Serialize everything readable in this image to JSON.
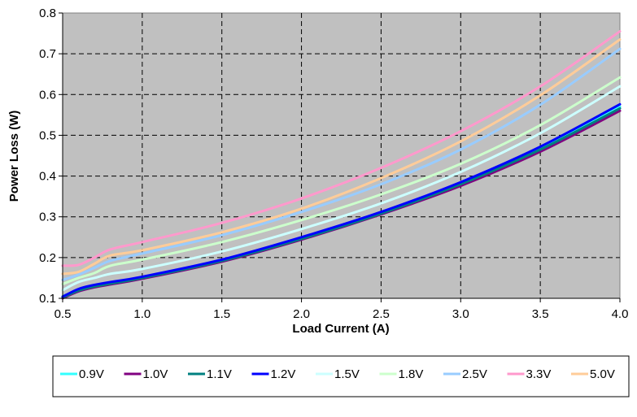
{
  "chart_data": {
    "type": "line",
    "title": "",
    "xlabel": "Load Current (A)",
    "ylabel": "Power Loss (W)",
    "xlim": [
      0.5,
      4.0
    ],
    "ylim": [
      0.1,
      0.8
    ],
    "x_ticks": [
      "0.5",
      "1.0",
      "1.5",
      "2.0",
      "2.5",
      "3.0",
      "3.5",
      "4.0"
    ],
    "y_ticks": [
      "0.1",
      "0.2",
      "0.3",
      "0.4",
      "0.5",
      "0.6",
      "0.7",
      "0.8"
    ],
    "grid": true,
    "plot_background": "#c0c0c0",
    "legend_position": "bottom",
    "x": [
      0.5,
      0.6,
      0.7,
      0.8,
      1.0,
      1.5,
      2.0,
      2.5,
      3.0,
      3.5,
      4.0
    ],
    "series": [
      {
        "name": "0.9V",
        "color": "#33ffff",
        "values": [
          0.105,
          0.12,
          0.13,
          0.137,
          0.15,
          0.193,
          0.248,
          0.31,
          0.382,
          0.468,
          0.57
        ]
      },
      {
        "name": "1.0V",
        "color": "#800080",
        "values": [
          0.1,
          0.117,
          0.127,
          0.134,
          0.148,
          0.19,
          0.244,
          0.306,
          0.376,
          0.46,
          0.56
        ]
      },
      {
        "name": "1.1V",
        "color": "#008080",
        "values": [
          0.102,
          0.119,
          0.129,
          0.136,
          0.15,
          0.192,
          0.246,
          0.308,
          0.38,
          0.465,
          0.566
        ]
      },
      {
        "name": "1.2V",
        "color": "#0000ff",
        "values": [
          0.104,
          0.123,
          0.133,
          0.14,
          0.153,
          0.195,
          0.25,
          0.312,
          0.385,
          0.472,
          0.576
        ]
      },
      {
        "name": "1.5V",
        "color": "#ccffff",
        "values": [
          0.12,
          0.14,
          0.15,
          0.16,
          0.172,
          0.215,
          0.27,
          0.333,
          0.41,
          0.505,
          0.62
        ]
      },
      {
        "name": "1.8V",
        "color": "#ccffcc",
        "values": [
          0.135,
          0.15,
          0.162,
          0.18,
          0.195,
          0.238,
          0.292,
          0.355,
          0.43,
          0.525,
          0.642
        ]
      },
      {
        "name": "2.5V",
        "color": "#99ccff",
        "values": [
          0.145,
          0.158,
          0.175,
          0.192,
          0.21,
          0.255,
          0.312,
          0.38,
          0.465,
          0.575,
          0.712
        ]
      },
      {
        "name": "3.3V",
        "color": "#ff99cc",
        "values": [
          0.18,
          0.182,
          0.2,
          0.22,
          0.238,
          0.285,
          0.345,
          0.42,
          0.51,
          0.62,
          0.755
        ]
      },
      {
        "name": "5.0V",
        "color": "#ffcc99",
        "values": [
          0.16,
          0.165,
          0.185,
          0.205,
          0.218,
          0.262,
          0.32,
          0.395,
          0.485,
          0.598,
          0.735
        ]
      }
    ]
  }
}
